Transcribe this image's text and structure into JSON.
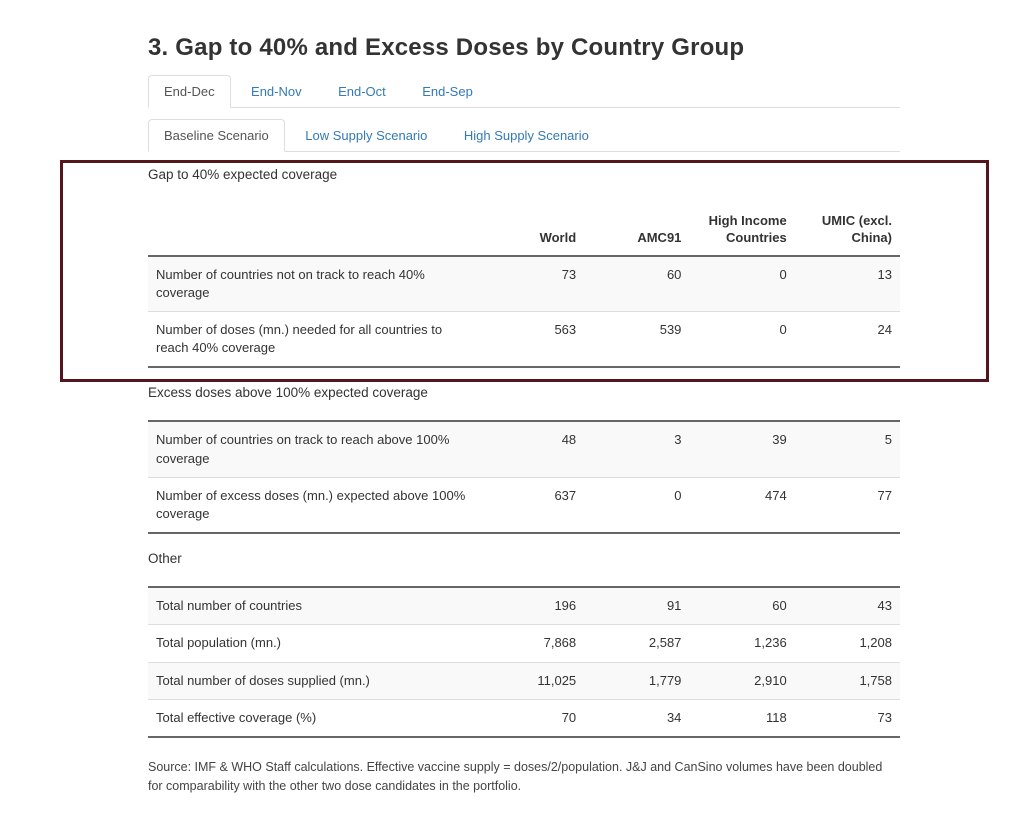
{
  "page": {
    "title": "3. Gap to 40% and Excess Doses by Country Group"
  },
  "tabs": {
    "period": [
      {
        "label": "End-Dec",
        "active": true
      },
      {
        "label": "End-Nov",
        "active": false
      },
      {
        "label": "End-Oct",
        "active": false
      },
      {
        "label": "End-Sep",
        "active": false
      }
    ],
    "scenario": [
      {
        "label": "Baseline Scenario",
        "active": true
      },
      {
        "label": "Low Supply Scenario",
        "active": false
      },
      {
        "label": "High Supply Scenario",
        "active": false
      }
    ]
  },
  "columns": [
    "World",
    "AMC91",
    "High Income Countries",
    "UMIC (excl. China)"
  ],
  "sections": [
    {
      "heading": "Gap to 40% expected coverage",
      "highlighted": true,
      "rows": [
        {
          "label": "Number of countries not on track to reach 40% coverage",
          "values": [
            "73",
            "60",
            "0",
            "13"
          ]
        },
        {
          "label": "Number of doses (mn.) needed for all countries to reach 40% coverage",
          "values": [
            "563",
            "539",
            "0",
            "24"
          ]
        }
      ]
    },
    {
      "heading": "Excess doses above 100% expected coverage",
      "highlighted": false,
      "rows": [
        {
          "label": "Number of countries on track to reach above 100% coverage",
          "values": [
            "48",
            "3",
            "39",
            "5"
          ]
        },
        {
          "label": "Number of excess doses (mn.) expected above 100% coverage",
          "values": [
            "637",
            "0",
            "474",
            "77"
          ]
        }
      ]
    },
    {
      "heading": "Other",
      "highlighted": false,
      "rows": [
        {
          "label": "Total number of countries",
          "values": [
            "196",
            "91",
            "60",
            "43"
          ]
        },
        {
          "label": "Total population (mn.)",
          "values": [
            "7,868",
            "2,587",
            "1,236",
            "1,208"
          ]
        },
        {
          "label": "Total number of doses supplied (mn.)",
          "values": [
            "11,025",
            "1,779",
            "2,910",
            "1,758"
          ]
        },
        {
          "label": "Total effective coverage (%)",
          "values": [
            "70",
            "34",
            "118",
            "73"
          ]
        }
      ]
    }
  ],
  "source_note": "Source: IMF & WHO Staff calculations. Effective vaccine supply = doses/2/population. J&J and CanSino volumes have been doubled for comparability with the other two dose candidates in the portfolio.",
  "colors": {
    "link_blue": "#337ab7",
    "active_tab_text": "#555555",
    "highlight_border": "#54151c",
    "table_stripe": "#f9f9f9",
    "table_dark_border": "#666666",
    "row_divider": "#dddddd"
  }
}
